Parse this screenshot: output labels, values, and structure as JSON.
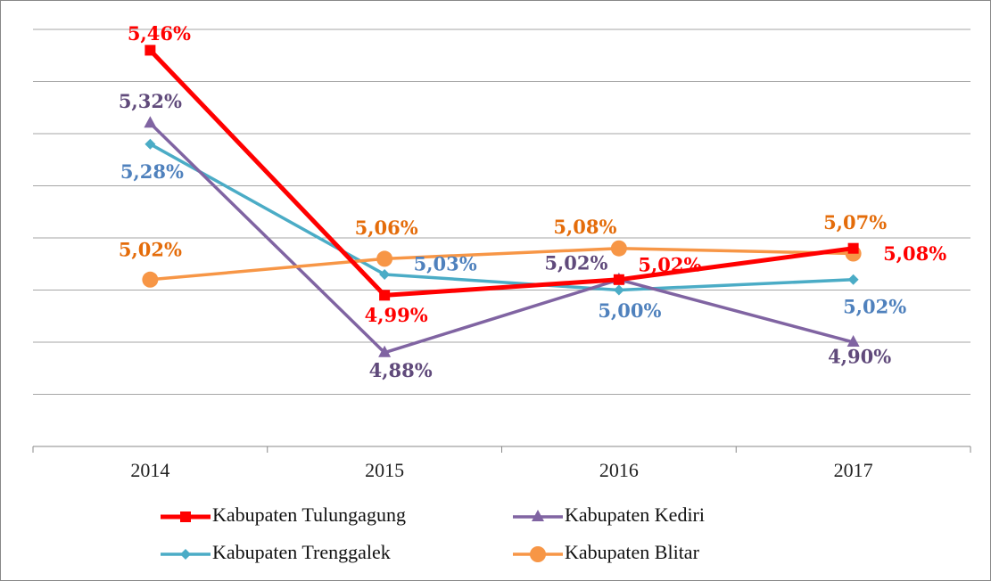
{
  "chart_data": {
    "type": "line",
    "categories": [
      "2014",
      "2015",
      "2016",
      "2017"
    ],
    "ylim": [
      4.7,
      5.5
    ],
    "yticks": [
      4.7,
      4.8,
      4.9,
      5.0,
      5.1,
      5.2,
      5.3,
      5.4,
      5.5
    ],
    "grid": true,
    "legend": "bottom",
    "series": [
      {
        "name": "Kabupaten Tulungagung",
        "color": "#ff0000",
        "label_color": "#ff0000",
        "marker": "square",
        "values": [
          5.46,
          4.99,
          5.02,
          5.08
        ],
        "value_labels": [
          "5,46%",
          "4,99%",
          "5,02%",
          "5,08%"
        ]
      },
      {
        "name": "Kabupaten Kediri",
        "color": "#8064a2",
        "label_color": "#604a7b",
        "marker": "triangle",
        "values": [
          5.32,
          4.88,
          5.02,
          4.9
        ],
        "value_labels": [
          "5,32%",
          "4,88%",
          "5,02%",
          "4,90%"
        ]
      },
      {
        "name": "Kabupaten Trenggalek",
        "color": "#4bacc6",
        "label_color": "#4f81bd",
        "marker": "diamond",
        "values": [
          5.28,
          5.03,
          5.0,
          5.02
        ],
        "value_labels": [
          "5,28%",
          "5,03%",
          "5,00%",
          "5,02%"
        ]
      },
      {
        "name": "Kabupaten Blitar",
        "color": "#f79646",
        "label_color": "#e46c0a",
        "marker": "circle",
        "values": [
          5.02,
          5.06,
          5.08,
          5.07
        ],
        "value_labels": [
          "5,02%",
          "5,06%",
          "5,08%",
          "5,07%"
        ]
      }
    ]
  }
}
